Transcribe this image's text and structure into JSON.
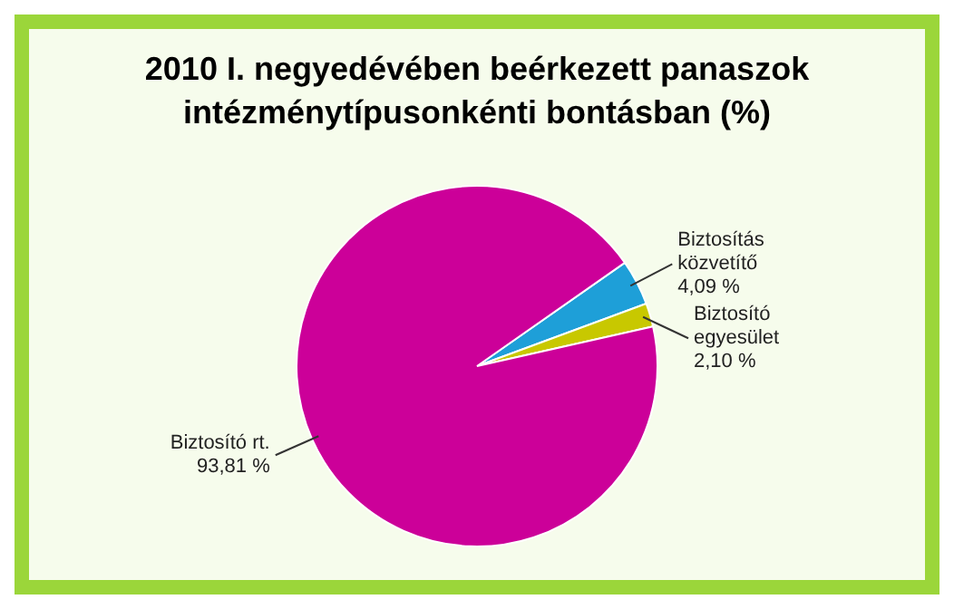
{
  "chart_data": {
    "type": "pie",
    "title": "2010 I. negyedévében beérkezett panaszok intézménytípusonkénti bontásban (%)",
    "categories": [
      "Biztosítás közvetítő",
      "Biztosító egyesület",
      "Biztosító rt."
    ],
    "values": [
      4.09,
      2.1,
      93.81
    ],
    "colors": [
      "#1e9fd8",
      "#c8c800",
      "#cc0099"
    ],
    "value_labels": [
      "4,09 %",
      "2,10 %",
      "93,81 %"
    ],
    "legend": false
  }
}
